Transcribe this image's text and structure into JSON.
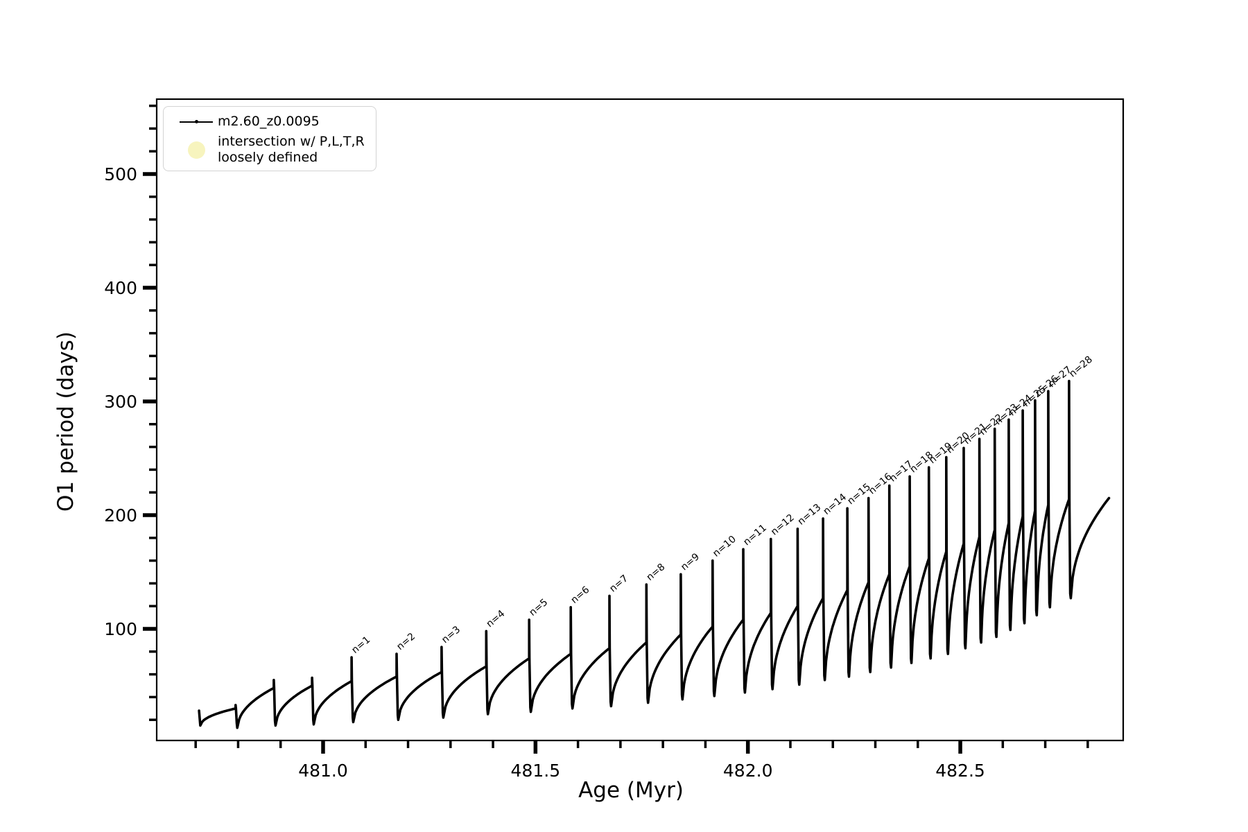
{
  "figure": {
    "background": "#ffffff",
    "line_color": "#000000"
  },
  "axes": {
    "xlabel": "Age (Myr)",
    "ylabel": "O1 period (days)"
  },
  "legend": {
    "items": [
      {
        "label": "m2.60_z0.0095",
        "marker": "line-with-dot-marker",
        "color": "#000000"
      },
      {
        "label_line1": "intersection w/ P,L,T,R",
        "label_line2": "loosely defined",
        "marker": "circle-marker",
        "color": "#f7f4be"
      }
    ]
  },
  "chart_data": {
    "type": "line",
    "title": "",
    "xlabel": "Age (Myr)",
    "ylabel": "O1 period (days)",
    "series_name": "m2.60_z0.0095",
    "line_color": "#000000",
    "xlim": [
      480.61,
      482.88
    ],
    "ylim": [
      0,
      566
    ],
    "x_major_ticks": [
      481.0,
      481.5,
      482.0,
      482.5
    ],
    "x_tick_labels": [
      "481.0",
      "481.5",
      "482.0",
      "482.5"
    ],
    "x_minor_tick_step": 0.1,
    "x_minor_tick_range": [
      480.7,
      482.8
    ],
    "y_major_ticks": [
      100,
      200,
      300,
      400,
      500
    ],
    "y_tick_labels": [
      "100",
      "200",
      "300",
      "400",
      "500"
    ],
    "y_minor_tick_step": 20,
    "y_minor_tick_range": [
      20,
      560
    ],
    "grid": false,
    "legend_position": "upper left",
    "description": "Sawtooth pulse cycles of O1 period vs age; each cycle rises smoothly, emits a narrow vertical spike labelled n=1..28, then drops sharply to a minimum.",
    "start_point": {
      "age": 480.708,
      "value": 28,
      "dip_value": 15
    },
    "end_point": {
      "age": 482.85,
      "value": 215
    },
    "cycles": [
      {
        "label": "",
        "drop_age": 480.794,
        "peak": 30,
        "spike_top": 33,
        "min_after": 13
      },
      {
        "label": "",
        "drop_age": 480.884,
        "peak": 48,
        "spike_top": 55,
        "min_after": 15
      },
      {
        "label": "",
        "drop_age": 480.974,
        "peak": 50,
        "spike_top": 57,
        "min_after": 16
      },
      {
        "label": "n=1",
        "drop_age": 481.067,
        "peak": 54,
        "spike_top": 75,
        "min_after": 18
      },
      {
        "label": "n=2",
        "drop_age": 481.173,
        "peak": 58,
        "spike_top": 78,
        "min_after": 20
      },
      {
        "label": "n=3",
        "drop_age": 481.279,
        "peak": 62,
        "spike_top": 84,
        "min_after": 22
      },
      {
        "label": "n=4",
        "drop_age": 481.384,
        "peak": 67,
        "spike_top": 98,
        "min_after": 25
      },
      {
        "label": "n=5",
        "drop_age": 481.485,
        "peak": 74,
        "spike_top": 108,
        "min_after": 27
      },
      {
        "label": "n=6",
        "drop_age": 481.583,
        "peak": 78,
        "spike_top": 119,
        "min_after": 30
      },
      {
        "label": "n=7",
        "drop_age": 481.674,
        "peak": 83,
        "spike_top": 129,
        "min_after": 32
      },
      {
        "label": "n=8",
        "drop_age": 481.761,
        "peak": 88,
        "spike_top": 139,
        "min_after": 35
      },
      {
        "label": "n=9",
        "drop_age": 481.842,
        "peak": 95,
        "spike_top": 148,
        "min_after": 38
      },
      {
        "label": "n=10",
        "drop_age": 481.917,
        "peak": 102,
        "spike_top": 160,
        "min_after": 41
      },
      {
        "label": "n=11",
        "drop_age": 481.989,
        "peak": 108,
        "spike_top": 170,
        "min_after": 44
      },
      {
        "label": "n=12",
        "drop_age": 482.054,
        "peak": 114,
        "spike_top": 179,
        "min_after": 47
      },
      {
        "label": "n=13",
        "drop_age": 482.117,
        "peak": 120,
        "spike_top": 188,
        "min_after": 51
      },
      {
        "label": "n=14",
        "drop_age": 482.177,
        "peak": 127,
        "spike_top": 197,
        "min_after": 55
      },
      {
        "label": "n=15",
        "drop_age": 482.234,
        "peak": 134,
        "spike_top": 206,
        "min_after": 58
      },
      {
        "label": "n=16",
        "drop_age": 482.284,
        "peak": 141,
        "spike_top": 215,
        "min_after": 62
      },
      {
        "label": "n=17",
        "drop_age": 482.333,
        "peak": 148,
        "spike_top": 226,
        "min_after": 66
      },
      {
        "label": "n=18",
        "drop_age": 482.381,
        "peak": 155,
        "spike_top": 234,
        "min_after": 70
      },
      {
        "label": "n=19",
        "drop_age": 482.426,
        "peak": 162,
        "spike_top": 242,
        "min_after": 74
      },
      {
        "label": "n=20",
        "drop_age": 482.467,
        "peak": 168,
        "spike_top": 251,
        "min_after": 78
      },
      {
        "label": "n=21",
        "drop_age": 482.508,
        "peak": 175,
        "spike_top": 259,
        "min_after": 83
      },
      {
        "label": "n=22",
        "drop_age": 482.545,
        "peak": 181,
        "spike_top": 267,
        "min_after": 88
      },
      {
        "label": "n=23",
        "drop_age": 482.581,
        "peak": 187,
        "spike_top": 276,
        "min_after": 93
      },
      {
        "label": "n=24",
        "drop_age": 482.614,
        "peak": 193,
        "spike_top": 284,
        "min_after": 99
      },
      {
        "label": "n=25",
        "drop_age": 482.647,
        "peak": 199,
        "spike_top": 292,
        "min_after": 105
      },
      {
        "label": "n=26",
        "drop_age": 482.676,
        "peak": 204,
        "spike_top": 301,
        "min_after": 112
      },
      {
        "label": "n=27",
        "drop_age": 482.707,
        "peak": 209,
        "spike_top": 309,
        "min_after": 119
      },
      {
        "label": "n=28",
        "drop_age": 482.756,
        "peak": 214,
        "spike_top": 318,
        "min_after": 127
      }
    ]
  }
}
